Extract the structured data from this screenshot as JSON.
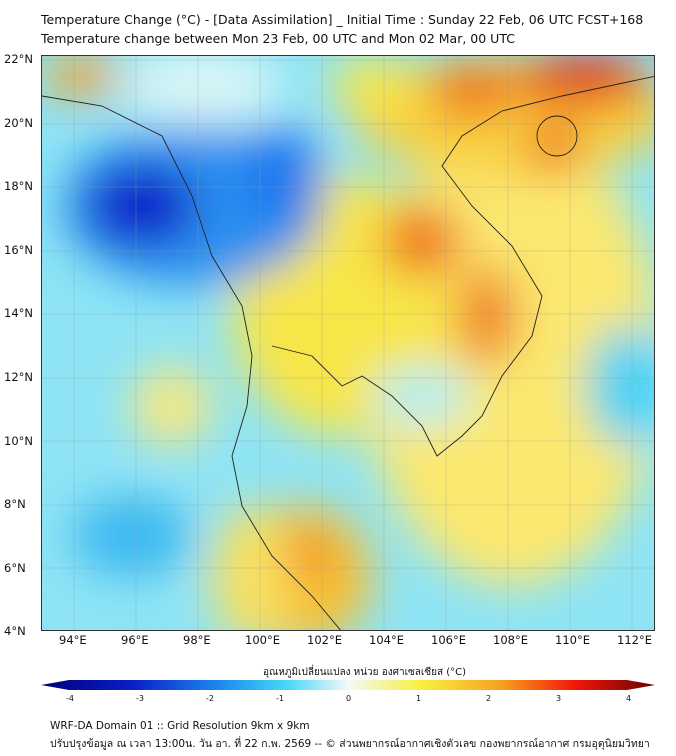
{
  "title": {
    "line1": "Temperature Change (°C) - [Data Assimilation] _ Initial Time : Sunday 22 Feb, 06 UTC FCST+168",
    "line2": "Temperature change between Mon 23 Feb, 00 UTC and Mon 02 Mar, 00 UTC"
  },
  "map": {
    "lat_labels": [
      "22°N",
      "20°N",
      "18°N",
      "16°N",
      "14°N",
      "12°N",
      "10°N",
      "8°N",
      "6°N",
      "4°N"
    ],
    "lon_labels": [
      "94°E",
      "96°E",
      "98°E",
      "100°E",
      "102°E",
      "104°E",
      "106°E",
      "108°E",
      "110°E",
      "112°E"
    ],
    "colors": {
      "deep_blue": "#0a1fc8",
      "blue": "#1e78f0",
      "cyan": "#46d2f5",
      "light": "#d8f6f6",
      "yellow": "#f8e64a",
      "orange": "#f8a020",
      "red": "#e8280a"
    }
  },
  "colorbar": {
    "label": "อุณหภูมิเปลี่ยนแปลง หน่วย องศาเซลเซียส (°C)",
    "ticks": [
      "-4",
      "-3",
      "-2",
      "-1",
      "0",
      "1",
      "2",
      "3",
      "4"
    ],
    "min": -4,
    "max": 4
  },
  "footer": {
    "line1": "WRF-DA Domain 01 :: Grid Resolution 9km x 9km",
    "line2": "ปรับปรุงข้อมูล ณ เวลา 13:00น. วัน อา. ที่ 22 ก.พ. 2569 -- © ส่วนพยากรณ์อากาศเชิงตัวเลข กองพยากรณ์อากาศ กรมอุตุนิยมวิทยา"
  }
}
